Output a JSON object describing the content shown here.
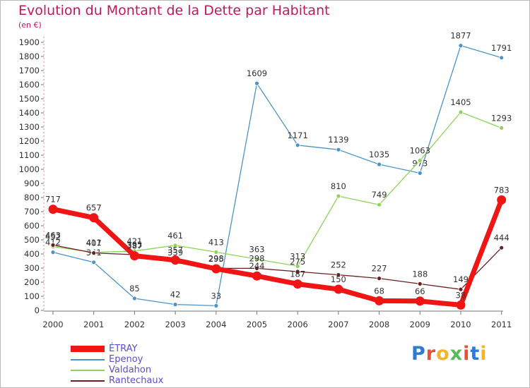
{
  "chart_data": {
    "type": "line",
    "title": "Evolution du Montant de la Dette par Habitant",
    "subtitle": "(en €)",
    "categories": [
      "2000",
      "2001",
      "2002",
      "2003",
      "2004",
      "2005",
      "2006",
      "2007",
      "2008",
      "2009",
      "2010",
      "2011"
    ],
    "ylim": [
      0,
      1900
    ],
    "yticks": [
      0,
      100,
      200,
      300,
      400,
      500,
      600,
      700,
      800,
      900,
      1000,
      1100,
      1200,
      1300,
      1400,
      1500,
      1600,
      1700,
      1800,
      1900
    ],
    "grid": false,
    "legend_position": "bottom-left",
    "series": [
      {
        "name": "Epenoy",
        "color": "#4e93c7",
        "values": [
          412,
          341,
          85,
          42,
          33,
          1609,
          1171,
          1139,
          1035,
          973,
          1877,
          1791
        ]
      },
      {
        "name": "Valdahon",
        "color": "#8fd45a",
        "values": [
          452,
          411,
          421,
          461,
          413,
          363,
          313,
          810,
          749,
          1063,
          1405,
          1293
        ]
      },
      {
        "name": "Rantechaux",
        "color": "#6b1f1f",
        "values": [
          463,
          407,
          395,
          339,
          298,
          298,
          275,
          252,
          227,
          188,
          149,
          444
        ]
      },
      {
        "name": "ÉTRAY",
        "color": "#f01515",
        "values": [
          717,
          657,
          387,
          357,
          295,
          244,
          187,
          150,
          68,
          66,
          38,
          783
        ]
      }
    ]
  },
  "legend": {
    "items": [
      {
        "label": "ÉTRAY",
        "color": "#f01515"
      },
      {
        "label": "Epenoy",
        "color": "#4e93c7"
      },
      {
        "label": "Valdahon",
        "color": "#8fd45a"
      },
      {
        "label": "Rantechaux",
        "color": "#6b1f1f"
      }
    ]
  },
  "logo": {
    "letters": [
      "P",
      "r",
      "o",
      "x",
      "i",
      "t",
      "i"
    ],
    "colors": [
      "#2e7bd6",
      "#e8503a",
      "#f2b52a",
      "#5cb85c",
      "#e8503a",
      "#2e7bd6",
      "#f2b52a"
    ]
  }
}
